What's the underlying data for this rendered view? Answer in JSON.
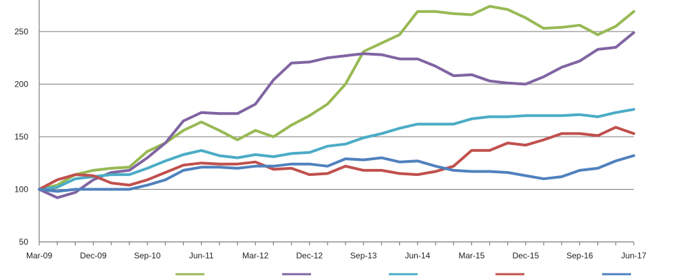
{
  "chart_data": {
    "type": "line",
    "title": "",
    "xlabel": "",
    "ylabel": "",
    "ylim": [
      50,
      280
    ],
    "yticks": [
      50,
      100,
      150,
      200,
      250
    ],
    "grid": true,
    "x_tick_labels": [
      "Mar-09",
      "Dec-09",
      "Sep-10",
      "Jun-11",
      "Mar-12",
      "Dec-12",
      "Sep-13",
      "Jun-14",
      "Mar-15",
      "Dec-15",
      "Sep-16",
      "Jun-17"
    ],
    "x": [
      "Mar-09",
      "Jun-09",
      "Sep-09",
      "Dec-09",
      "Mar-10",
      "Jun-10",
      "Sep-10",
      "Dec-10",
      "Mar-11",
      "Jun-11",
      "Sep-11",
      "Dec-11",
      "Mar-12",
      "Jun-12",
      "Sep-12",
      "Dec-12",
      "Mar-13",
      "Jun-13",
      "Sep-13",
      "Dec-13",
      "Mar-14",
      "Jun-14",
      "Sep-14",
      "Dec-14",
      "Mar-15",
      "Jun-15",
      "Sep-15",
      "Dec-15",
      "Mar-16",
      "Jun-16",
      "Sep-16",
      "Dec-16",
      "Mar-17",
      "Jun-17"
    ],
    "series": [
      {
        "color": "#98b954",
        "values": [
          100,
          104,
          114,
          118,
          120,
          121,
          136,
          144,
          156,
          164,
          156,
          147,
          156,
          150,
          161,
          170,
          181,
          200,
          231,
          239,
          247,
          269,
          269,
          267,
          266,
          274,
          271,
          263,
          253,
          254,
          256,
          247,
          255,
          269
        ]
      },
      {
        "color": "#8064a2",
        "values": [
          100,
          92,
          97,
          109,
          116,
          118,
          130,
          144,
          165,
          173,
          172,
          172,
          181,
          204,
          220,
          221,
          225,
          227,
          229,
          228,
          224,
          224,
          217,
          208,
          209,
          203,
          201,
          200,
          207,
          216,
          222,
          233,
          235,
          249
        ]
      },
      {
        "color": "#4bacc6",
        "values": [
          100,
          102,
          110,
          112,
          114,
          114,
          120,
          127,
          133,
          137,
          132,
          130,
          133,
          131,
          134,
          135,
          141,
          143,
          149,
          153,
          158,
          162,
          162,
          162,
          167,
          169,
          169,
          170,
          170,
          170,
          171,
          169,
          173,
          176
        ]
      },
      {
        "color": "#c0504d",
        "values": [
          100,
          109,
          114,
          113,
          106,
          104,
          109,
          116,
          123,
          125,
          124,
          124,
          126,
          119,
          120,
          114,
          115,
          122,
          118,
          118,
          115,
          114,
          117,
          122,
          137,
          137,
          144,
          142,
          147,
          153,
          153,
          151,
          159,
          153
        ]
      },
      {
        "color": "#4f81bd",
        "values": [
          100,
          98,
          100,
          100,
          100,
          100,
          104,
          109,
          118,
          121,
          121,
          120,
          122,
          122,
          124,
          124,
          122,
          129,
          128,
          130,
          126,
          127,
          122,
          118,
          117,
          117,
          116,
          113,
          110,
          112,
          118,
          120,
          127,
          132
        ]
      }
    ]
  }
}
